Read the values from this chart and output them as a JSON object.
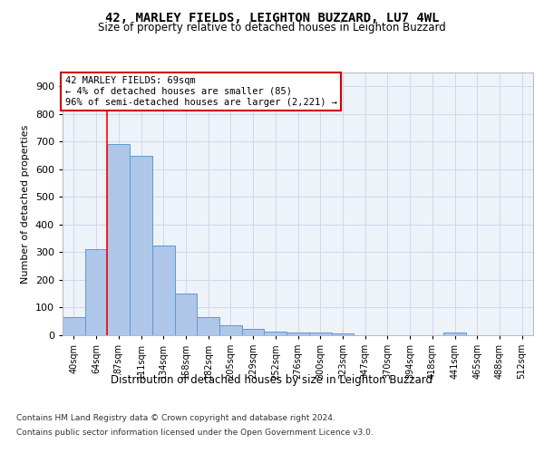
{
  "title": "42, MARLEY FIELDS, LEIGHTON BUZZARD, LU7 4WL",
  "subtitle": "Size of property relative to detached houses in Leighton Buzzard",
  "xlabel": "Distribution of detached houses by size in Leighton Buzzard",
  "ylabel": "Number of detached properties",
  "bin_labels": [
    "40sqm",
    "64sqm",
    "87sqm",
    "111sqm",
    "134sqm",
    "158sqm",
    "182sqm",
    "205sqm",
    "229sqm",
    "252sqm",
    "276sqm",
    "300sqm",
    "323sqm",
    "347sqm",
    "370sqm",
    "394sqm",
    "418sqm",
    "441sqm",
    "465sqm",
    "488sqm",
    "512sqm"
  ],
  "bar_heights": [
    65,
    310,
    690,
    650,
    325,
    150,
    65,
    35,
    22,
    13,
    10,
    10,
    8,
    0,
    0,
    0,
    0,
    10,
    0,
    0,
    0
  ],
  "bar_color": "#aec6e8",
  "bar_edge_color": "#5b9bd5",
  "grid_color": "#d0d8e8",
  "red_line_x": 1.5,
  "annotation_line1": "42 MARLEY FIELDS: 69sqm",
  "annotation_line2": "← 4% of detached houses are smaller (85)",
  "annotation_line3": "96% of semi-detached houses are larger (2,221) →",
  "annotation_box_color": "#ffffff",
  "annotation_box_edge": "#cc0000",
  "footer_line1": "Contains HM Land Registry data © Crown copyright and database right 2024.",
  "footer_line2": "Contains public sector information licensed under the Open Government Licence v3.0.",
  "ylim": [
    0,
    950
  ],
  "yticks": [
    0,
    100,
    200,
    300,
    400,
    500,
    600,
    700,
    800,
    900
  ],
  "background_color": "#ffffff",
  "axes_facecolor": "#eef2f9"
}
